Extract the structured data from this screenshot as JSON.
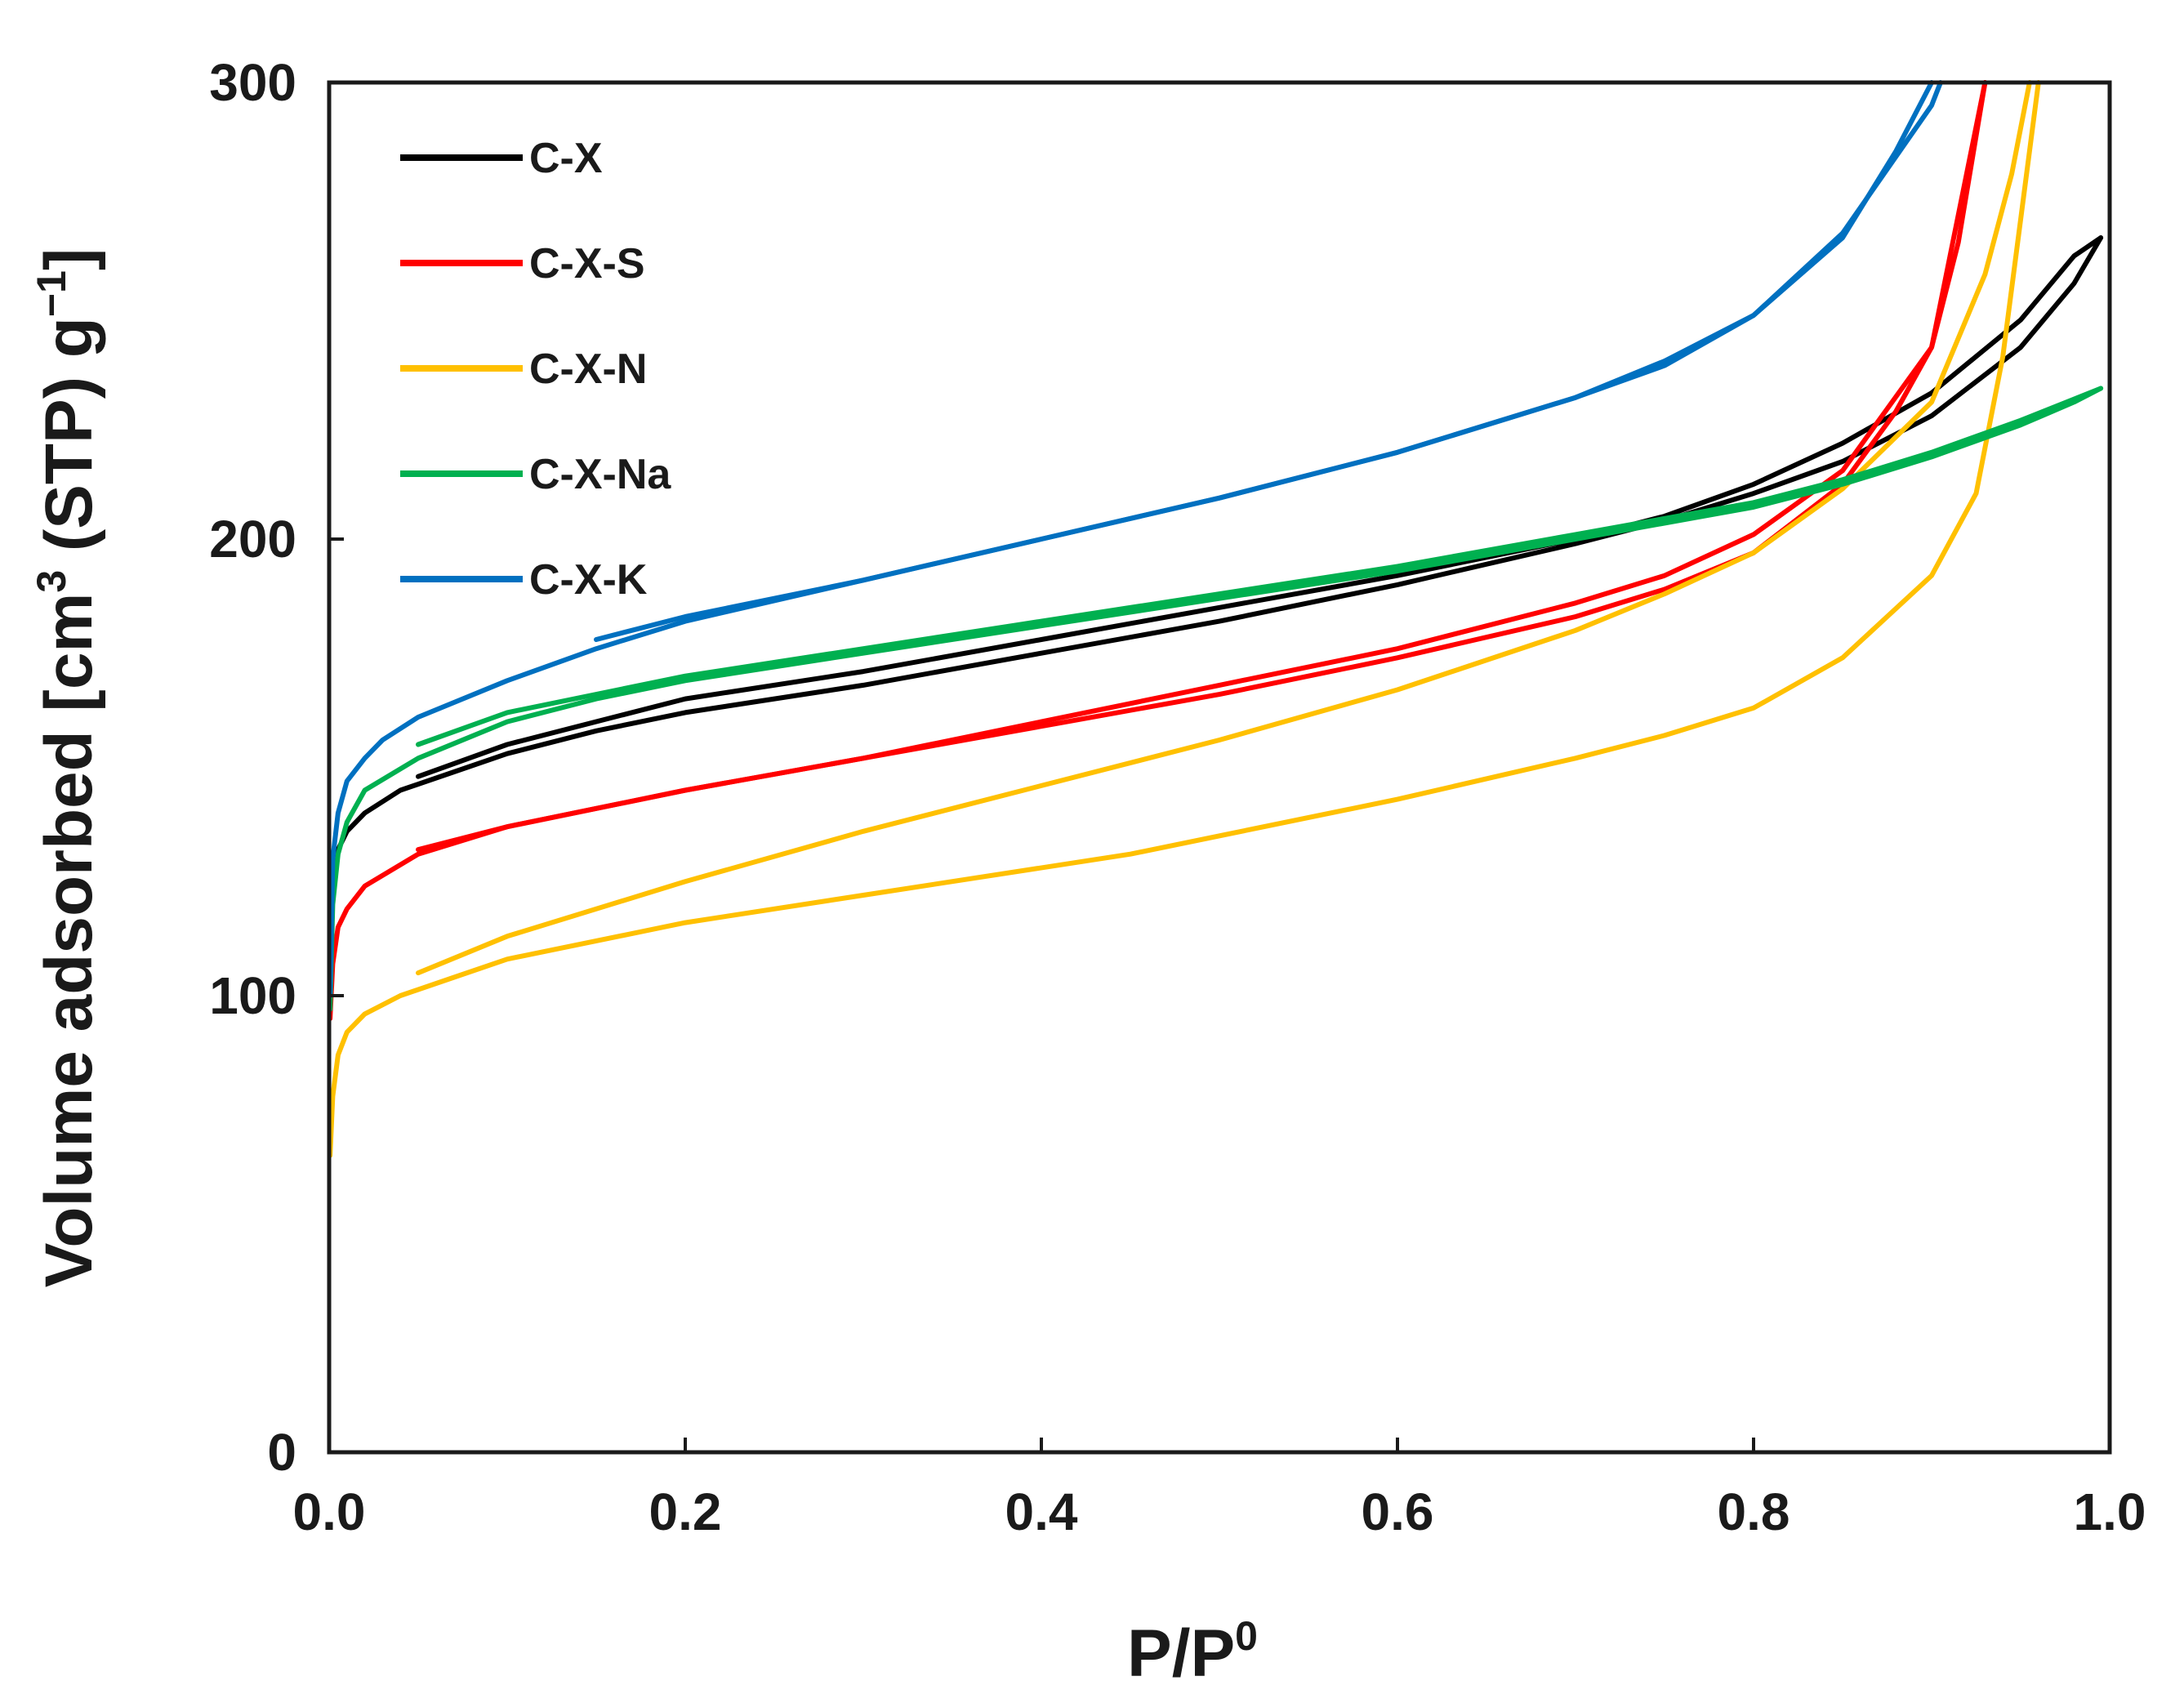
{
  "chart_data": {
    "type": "line",
    "title": "",
    "xlabel": {
      "main": "P/P",
      "sup": "0"
    },
    "ylabel": {
      "prefix": "Volume adsorbed [cm",
      "sup1": "3",
      "middle": " (STP) g",
      "sup2": "−1",
      "suffix": "]"
    },
    "xlim": [
      0,
      1
    ],
    "ylim": [
      0,
      300
    ],
    "xticks": [
      0,
      0.2,
      0.4,
      0.6,
      0.8,
      1.0
    ],
    "xtick_labels": [
      "0.0",
      "0.2",
      "0.4",
      "0.6",
      "0.8",
      "1.0"
    ],
    "yticks": [
      0,
      100,
      200,
      300
    ],
    "ytick_labels": [
      "0",
      "100",
      "200",
      "300"
    ],
    "grid": false,
    "legend_position": "top-left",
    "series": [
      {
        "name": "C-X",
        "color": "#000000",
        "adsorption": [
          [
            0.0005,
            120
          ],
          [
            0.002,
            127
          ],
          [
            0.005,
            132
          ],
          [
            0.01,
            136
          ],
          [
            0.02,
            140
          ],
          [
            0.04,
            145
          ],
          [
            0.07,
            149
          ],
          [
            0.1,
            153
          ],
          [
            0.15,
            158
          ],
          [
            0.2,
            162
          ],
          [
            0.3,
            168
          ],
          [
            0.4,
            175
          ],
          [
            0.5,
            182
          ],
          [
            0.6,
            190
          ],
          [
            0.7,
            199
          ],
          [
            0.75,
            204
          ],
          [
            0.8,
            210
          ],
          [
            0.85,
            217
          ],
          [
            0.9,
            227
          ],
          [
            0.95,
            242
          ],
          [
            0.98,
            256
          ],
          [
            0.995,
            266
          ]
        ],
        "desorption": [
          [
            0.995,
            266
          ],
          [
            0.98,
            262
          ],
          [
            0.95,
            248
          ],
          [
            0.9,
            232
          ],
          [
            0.85,
            221
          ],
          [
            0.8,
            212
          ],
          [
            0.75,
            205
          ],
          [
            0.7,
            200
          ],
          [
            0.6,
            192
          ],
          [
            0.5,
            185
          ],
          [
            0.4,
            178
          ],
          [
            0.3,
            171
          ],
          [
            0.2,
            165
          ],
          [
            0.1,
            155
          ],
          [
            0.05,
            148
          ]
        ]
      },
      {
        "name": "C-X-S",
        "color": "#ff0000",
        "adsorption": [
          [
            0.0005,
            95
          ],
          [
            0.002,
            107
          ],
          [
            0.005,
            115
          ],
          [
            0.01,
            119
          ],
          [
            0.02,
            124
          ],
          [
            0.05,
            131
          ],
          [
            0.1,
            137
          ],
          [
            0.15,
            141
          ],
          [
            0.2,
            145
          ],
          [
            0.3,
            152
          ],
          [
            0.4,
            160
          ],
          [
            0.5,
            168
          ],
          [
            0.6,
            176
          ],
          [
            0.7,
            186
          ],
          [
            0.75,
            192
          ],
          [
            0.8,
            201
          ],
          [
            0.85,
            215
          ],
          [
            0.9,
            242
          ],
          [
            0.93,
            300
          ]
        ],
        "desorption": [
          [
            0.93,
            300
          ],
          [
            0.915,
            265
          ],
          [
            0.9,
            242
          ],
          [
            0.88,
            228
          ],
          [
            0.85,
            212
          ],
          [
            0.8,
            197
          ],
          [
            0.75,
            189
          ],
          [
            0.7,
            183
          ],
          [
            0.6,
            174
          ],
          [
            0.5,
            166
          ],
          [
            0.4,
            159
          ],
          [
            0.3,
            152
          ],
          [
            0.2,
            145
          ],
          [
            0.1,
            137
          ],
          [
            0.05,
            132
          ]
        ]
      },
      {
        "name": "C-X-N",
        "color": "#ffc000",
        "adsorption": [
          [
            0.0005,
            65
          ],
          [
            0.002,
            78
          ],
          [
            0.005,
            87
          ],
          [
            0.01,
            92
          ],
          [
            0.02,
            96
          ],
          [
            0.04,
            100
          ],
          [
            0.07,
            104
          ],
          [
            0.1,
            108
          ],
          [
            0.2,
            116
          ],
          [
            0.3,
            122
          ],
          [
            0.45,
            131
          ],
          [
            0.6,
            143
          ],
          [
            0.7,
            152
          ],
          [
            0.75,
            157
          ],
          [
            0.8,
            163
          ],
          [
            0.85,
            174
          ],
          [
            0.9,
            192
          ],
          [
            0.925,
            210
          ],
          [
            0.94,
            240
          ],
          [
            0.95,
            270
          ],
          [
            0.96,
            300
          ]
        ],
        "desorption": [
          [
            0.955,
            300
          ],
          [
            0.945,
            280
          ],
          [
            0.93,
            258
          ],
          [
            0.9,
            230
          ],
          [
            0.85,
            211
          ],
          [
            0.8,
            197
          ],
          [
            0.75,
            188
          ],
          [
            0.7,
            180
          ],
          [
            0.6,
            167
          ],
          [
            0.5,
            156
          ],
          [
            0.4,
            146
          ],
          [
            0.3,
            136
          ],
          [
            0.2,
            125
          ],
          [
            0.1,
            113
          ],
          [
            0.05,
            105
          ]
        ]
      },
      {
        "name": "C-X-Na",
        "color": "#00b050",
        "adsorption": [
          [
            0.0005,
            97
          ],
          [
            0.002,
            120
          ],
          [
            0.005,
            131
          ],
          [
            0.01,
            138
          ],
          [
            0.02,
            145
          ],
          [
            0.05,
            152
          ],
          [
            0.1,
            160
          ],
          [
            0.15,
            165
          ],
          [
            0.2,
            169
          ],
          [
            0.3,
            175
          ],
          [
            0.4,
            181
          ],
          [
            0.5,
            187
          ],
          [
            0.6,
            193
          ],
          [
            0.7,
            200
          ],
          [
            0.8,
            207
          ],
          [
            0.85,
            212
          ],
          [
            0.9,
            218
          ],
          [
            0.95,
            225
          ],
          [
            0.98,
            230
          ],
          [
            0.995,
            233
          ]
        ],
        "desorption": [
          [
            0.995,
            233
          ],
          [
            0.95,
            226
          ],
          [
            0.9,
            219
          ],
          [
            0.85,
            213
          ],
          [
            0.8,
            208
          ],
          [
            0.7,
            201
          ],
          [
            0.6,
            194
          ],
          [
            0.5,
            188
          ],
          [
            0.4,
            182
          ],
          [
            0.3,
            176
          ],
          [
            0.2,
            170
          ],
          [
            0.1,
            162
          ],
          [
            0.05,
            155
          ]
        ]
      },
      {
        "name": "C-X-K",
        "color": "#0070c0",
        "adsorption": [
          [
            0.0005,
            100
          ],
          [
            0.002,
            130
          ],
          [
            0.005,
            140
          ],
          [
            0.01,
            147
          ],
          [
            0.02,
            152
          ],
          [
            0.03,
            156
          ],
          [
            0.05,
            161
          ],
          [
            0.1,
            169
          ],
          [
            0.15,
            176
          ],
          [
            0.2,
            182
          ],
          [
            0.3,
            191
          ],
          [
            0.4,
            200
          ],
          [
            0.5,
            209
          ],
          [
            0.6,
            219
          ],
          [
            0.7,
            231
          ],
          [
            0.75,
            238
          ],
          [
            0.8,
            249
          ],
          [
            0.85,
            266
          ],
          [
            0.88,
            285
          ],
          [
            0.9,
            300
          ]
        ],
        "desorption": [
          [
            0.905,
            300
          ],
          [
            0.9,
            295
          ],
          [
            0.85,
            267
          ],
          [
            0.8,
            249
          ],
          [
            0.75,
            239
          ],
          [
            0.7,
            231
          ],
          [
            0.6,
            219
          ],
          [
            0.5,
            209
          ],
          [
            0.4,
            200
          ],
          [
            0.3,
            191
          ],
          [
            0.2,
            183
          ],
          [
            0.15,
            178
          ]
        ]
      }
    ]
  }
}
